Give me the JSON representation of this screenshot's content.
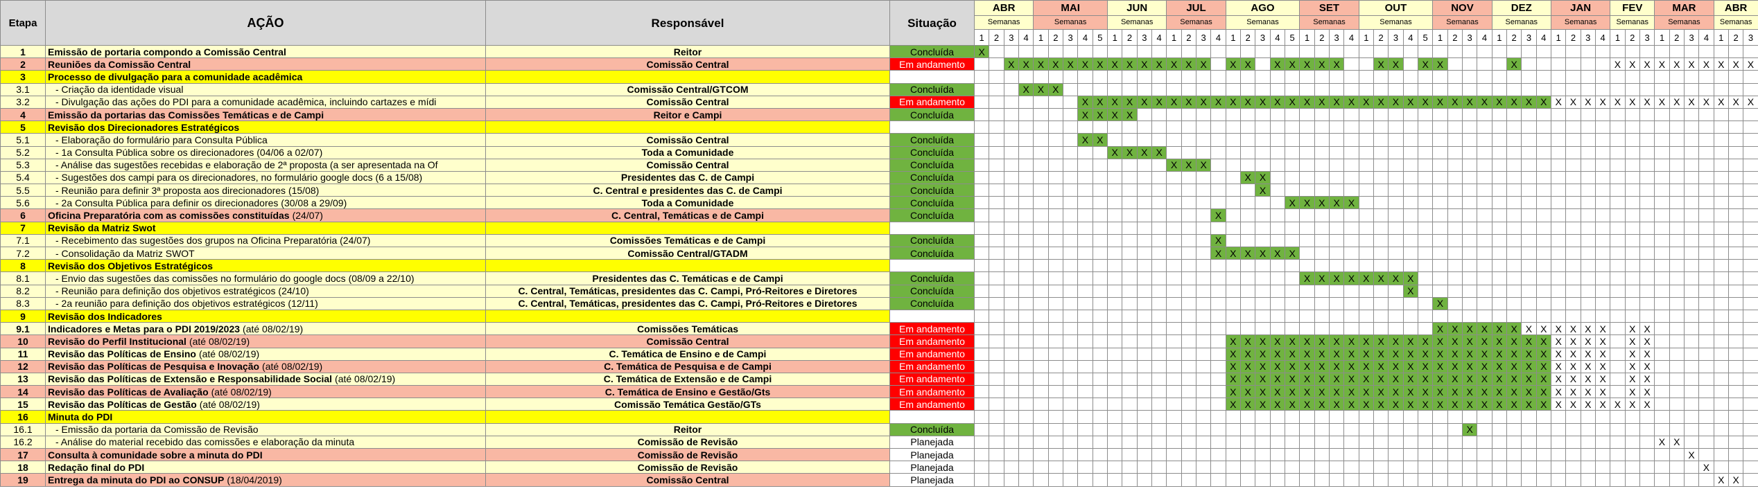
{
  "header": {
    "etapa": "Etapa",
    "acao": "AÇÃO",
    "responsavel": "Responsável",
    "situacao": "Situação",
    "weeks_label": "Semanas",
    "color": "#d9d9d9"
  },
  "status_colors": {
    "Concluída": {
      "bg": "#70b340",
      "fg": "#000000"
    },
    "Em andamento": {
      "bg": "#ff0000",
      "fg": "#ffffff"
    },
    "Planejada": {
      "bg": "#ffffff",
      "fg": "#000000"
    }
  },
  "done_color": "#70b340",
  "months": [
    {
      "name": "ABR",
      "weeks": [
        1,
        2,
        3,
        4
      ],
      "color": "#ffffcc"
    },
    {
      "name": "MAI",
      "weeks": [
        1,
        2,
        3,
        4,
        5
      ],
      "color": "#f9b8a4"
    },
    {
      "name": "JUN",
      "weeks": [
        1,
        2,
        3,
        4
      ],
      "color": "#ffffcc"
    },
    {
      "name": "JUL",
      "weeks": [
        1,
        2,
        3,
        4
      ],
      "color": "#f9b8a4"
    },
    {
      "name": "AGO",
      "weeks": [
        1,
        2,
        3,
        4,
        5
      ],
      "color": "#ffffcc"
    },
    {
      "name": "SET",
      "weeks": [
        1,
        2,
        3,
        4
      ],
      "color": "#f9b8a4"
    },
    {
      "name": "OUT",
      "weeks": [
        1,
        2,
        3,
        4,
        5
      ],
      "color": "#ffffcc"
    },
    {
      "name": "NOV",
      "weeks": [
        1,
        2,
        3,
        4
      ],
      "color": "#f9b8a4"
    },
    {
      "name": "DEZ",
      "weeks": [
        1,
        2,
        3,
        4
      ],
      "color": "#ffffcc"
    },
    {
      "name": "JAN",
      "weeks": [
        1,
        2,
        3,
        4
      ],
      "color": "#f9b8a4"
    },
    {
      "name": "FEV",
      "weeks": [
        1,
        2,
        3
      ],
      "color": "#ffffcc"
    },
    {
      "name": "MAR",
      "weeks": [
        1,
        2,
        3,
        4
      ],
      "color": "#f9b8a4"
    },
    {
      "name": "ABR",
      "weeks": [
        1,
        2,
        3
      ],
      "color": "#ffffcc"
    }
  ],
  "rows": [
    {
      "etapa": "1",
      "acao": "Emissão de portaria compondo a Comissão Central",
      "responsavel": "Reitor",
      "situacao": "Concluída",
      "color": "#ffffcc",
      "weeks": [
        "X"
      ],
      "done": [
        "g"
      ]
    },
    {
      "etapa": "2",
      "acao": "Reuniões da Comissão Central",
      "responsavel": "Comissão Central",
      "situacao": "Em andamento",
      "color": "#f9b8a4",
      "weeks": [
        "  XX",
        "XXXXX",
        "XXXX",
        "XXX ",
        "XX XX",
        "XXX",
        " XX X",
        "X",
        " X",
        "",
        "XXX",
        "XXXX",
        "XXX"
      ],
      "done": [
        "  gg",
        "ggggg",
        "gggg",
        "ggg ",
        "gg gg",
        "ggg",
        " gg g",
        "g",
        " g"
      ]
    },
    {
      "etapa": "3",
      "acao": "Processo de divulgação para a comunidade acadêmica",
      "color": "#ffff00"
    },
    {
      "etapa": "3.1",
      "acao": "- Criação da identidade visual",
      "sub": true,
      "responsavel": "Comissão Central/GTCOM",
      "situacao": "Concluída",
      "color": "#ffffcc",
      "weeks": [
        "   X",
        "XX"
      ],
      "done": [
        "   g",
        "gg"
      ]
    },
    {
      "etapa": "3.2",
      "acao": "- Divulgação das ações do PDI para a comunidade acadêmica, incluindo cartazes e mídi",
      "sub": true,
      "responsavel": "Comissão Central",
      "situacao": "Em andamento",
      "color": "#ffffcc",
      "weeks": [
        "",
        "   XX",
        "XXXX",
        "XXXX",
        "XXXXX",
        "XXXX",
        "XXXXX",
        "XXXX",
        "XXXX",
        "XXXX",
        "XXX",
        "XXXX",
        "XXX"
      ],
      "done": [
        "",
        "   gg",
        "gggg",
        "gggg",
        "ggggg",
        "gggg",
        "ggggg",
        "gggg",
        "gggg"
      ]
    },
    {
      "etapa": "4",
      "acao": "Emissão da portarias das Comissões Temáticas e de Campi",
      "responsavel": "Reitor e Campi",
      "situacao": "Concluída",
      "color": "#f9b8a4",
      "weeks": [
        "",
        "   XX",
        "XX"
      ],
      "done": [
        "",
        "   gg",
        "gg"
      ]
    },
    {
      "etapa": "5",
      "acao": "Revisão dos Direcionadores Estratégicos",
      "color": "#ffff00"
    },
    {
      "etapa": "5.1",
      "acao": "- Elaboração do formulário para Consulta Pública",
      "sub": true,
      "responsavel": "Comissão Central",
      "situacao": "Concluída",
      "color": "#ffffcc",
      "weeks": [
        "",
        "   XX"
      ],
      "done": [
        "",
        "   gg"
      ]
    },
    {
      "etapa": "5.2",
      "acao": "- 1a Consulta Pública sobre os direcionadores (04/06 a 02/07)",
      "sub": true,
      "responsavel": "Toda a Comunidade",
      "situacao": "Concluída",
      "color": "#ffffcc",
      "weeks": [
        "",
        "",
        "XXXX"
      ],
      "done": [
        "",
        "",
        "gggg"
      ]
    },
    {
      "etapa": "5.3",
      "acao": "- Análise das sugestões recebidas e elaboração de 2ª proposta (a ser apresentada na Of",
      "sub": true,
      "responsavel": "Comissão Central",
      "situacao": "Concluída",
      "color": "#ffffcc",
      "weeks": [
        "",
        "",
        "",
        "XXX"
      ],
      "done": [
        "",
        "",
        "",
        "ggg"
      ]
    },
    {
      "etapa": "5.4",
      "acao": "- Sugestões dos campi para os direcionadores, no formulário google docs (6 a 15/08)",
      "sub": true,
      "responsavel": "Presidentes das C. de Campi",
      "situacao": "Concluída",
      "color": "#ffffcc",
      "weeks": [
        "",
        "",
        "",
        "",
        " XX"
      ],
      "done": [
        "",
        "",
        "",
        "",
        " gg"
      ]
    },
    {
      "etapa": "5.5",
      "acao": "- Reunião para definir 3ª proposta aos direcionadores (15/08)",
      "sub": true,
      "responsavel": "C. Central e presidentes das C. de Campi",
      "situacao": "Concluída",
      "color": "#ffffcc",
      "weeks": [
        "",
        "",
        "",
        "",
        "  X"
      ],
      "done": [
        "",
        "",
        "",
        "",
        "  g"
      ]
    },
    {
      "etapa": "5.6",
      "acao": "- 2a Consulta Pública para definir os direcionadores (30/08 a 29/09)",
      "sub": true,
      "responsavel": "Toda a Comunidade",
      "situacao": "Concluída",
      "color": "#ffffcc",
      "weeks": [
        "",
        "",
        "",
        "",
        "    X",
        "XXXX"
      ],
      "done": [
        "",
        "",
        "",
        "",
        "    g",
        "gggg"
      ]
    },
    {
      "etapa": "6",
      "acao": "Oficina Preparatória com as comissões constituídas",
      "note": "(24/07)",
      "responsavel": "C. Central, Temáticas e de Campi",
      "situacao": "Concluída",
      "color": "#f9b8a4",
      "weeks": [
        "",
        "",
        "",
        "   X"
      ],
      "done": [
        "",
        "",
        "",
        "   g"
      ]
    },
    {
      "etapa": "7",
      "acao": "Revisão da Matriz Swot",
      "color": "#ffff00"
    },
    {
      "etapa": "7.1",
      "acao": "- Recebimento das sugestões dos grupos na Oficina Preparatória (24/07)",
      "sub": true,
      "responsavel": "Comissões Temáticas e de Campi",
      "situacao": "Concluída",
      "color": "#ffffcc",
      "weeks": [
        "",
        "",
        "",
        "   X"
      ],
      "done": [
        "",
        "",
        "",
        "   g"
      ]
    },
    {
      "etapa": "7.2",
      "acao": "- Consolidação da Matriz SWOT",
      "sub": true,
      "responsavel": "Comissão Central/GTADM",
      "situacao": "Concluída",
      "color": "#ffffcc",
      "weeks": [
        "",
        "",
        "",
        "   X",
        "XXXXX"
      ],
      "done": [
        "",
        "",
        "",
        "   g",
        "ggggg"
      ]
    },
    {
      "etapa": "8",
      "acao": "Revisão dos Objetivos Estratégicos",
      "color": "#ffff00"
    },
    {
      "etapa": "8.1",
      "acao": "- Envio das sugestões das comissões no formulário do google docs (08/09 a 22/10)",
      "sub": true,
      "responsavel": "Presidentes das C. Temáticas e de Campi",
      "situacao": "Concluída",
      "color": "#ffffcc",
      "weeks": [
        "",
        "",
        "",
        "",
        "",
        "XXXX",
        "XXXX"
      ],
      "done": [
        "",
        "",
        "",
        "",
        "",
        "gggg",
        "gggg"
      ]
    },
    {
      "etapa": "8.2",
      "acao": "- Reunião para definição dos objetivos estratégicos (24/10)",
      "sub": true,
      "responsavel": "C. Central, Temáticas, presidentes das C. Campi, Pró-Reitores e Diretores",
      "situacao": "Concluída",
      "color": "#ffffcc",
      "weeks": [
        "",
        "",
        "",
        "",
        "",
        "",
        "   X"
      ],
      "done": [
        "",
        "",
        "",
        "",
        "",
        "",
        "   g"
      ]
    },
    {
      "etapa": "8.3",
      "acao": "- 2a reunião para definição dos objetivos estratégicos (12/11)",
      "sub": true,
      "responsavel": "C. Central, Temáticas, presidentes das C. Campi, Pró-Reitores e Diretores",
      "situacao": "Concluída",
      "color": "#ffffcc",
      "weeks": [
        "",
        "",
        "",
        "",
        "",
        "",
        "",
        "X"
      ],
      "done": [
        "",
        "",
        "",
        "",
        "",
        "",
        "",
        "g"
      ]
    },
    {
      "etapa": "9",
      "acao": "Revisão dos Indicadores",
      "color": "#ffff00"
    },
    {
      "etapa": "9.1",
      "acao": "Indicadores e Metas para o PDI 2019/2023",
      "note": "(até 08/02/19)",
      "responsavel": "Comissões  Temáticas",
      "situacao": "Em andamento",
      "color": "#ffffcc",
      "weeks": [
        "",
        "",
        "",
        "",
        "",
        "",
        "",
        "XXXX",
        "XXXX",
        "XXXX",
        " XX"
      ],
      "done": [
        "",
        "",
        "",
        "",
        "",
        "",
        "",
        "gggg",
        "gg"
      ]
    },
    {
      "etapa": "10",
      "acao": "Revisão do Perfil Institucional",
      "note": "(até 08/02/19)",
      "responsavel": "Comissão Central",
      "situacao": "Em andamento",
      "color": "#f9b8a4",
      "weeks": [
        "",
        "",
        "",
        "",
        "XXXXX",
        "XXXX",
        "XXXXX",
        "XXXX",
        "XXXX",
        "XXXX",
        " XX"
      ],
      "done": [
        "",
        "",
        "",
        "",
        "ggggg",
        "gggg",
        "ggggg",
        "gggg",
        "gggg"
      ]
    },
    {
      "etapa": "11",
      "acao": "Revisão das Políticas de Ensino",
      "note": "(até 08/02/19)",
      "responsavel": "C. Temática de Ensino e de Campi",
      "situacao": "Em andamento",
      "color": "#ffffcc",
      "weeks": [
        "",
        "",
        "",
        "",
        "XXXXX",
        "XXXX",
        "XXXXX",
        "XXXX",
        "XXXX",
        "XXXX",
        " XX"
      ],
      "done": [
        "",
        "",
        "",
        "",
        "ggggg",
        "gggg",
        "ggggg",
        "gggg",
        "gggg"
      ]
    },
    {
      "etapa": "12",
      "acao": "Revisão das Políticas de Pesquisa e Inovação",
      "note": "(até 08/02/19)",
      "responsavel": "C. Temática de Pesquisa e de Campi",
      "situacao": "Em andamento",
      "color": "#f9b8a4",
      "weeks": [
        "",
        "",
        "",
        "",
        "XXXXX",
        "XXXX",
        "XXXXX",
        "XXXX",
        "XXXX",
        "XXXX",
        " XX"
      ],
      "done": [
        "",
        "",
        "",
        "",
        "ggggg",
        "gggg",
        "ggggg",
        "gggg",
        "gggg"
      ]
    },
    {
      "etapa": "13",
      "acao": "Revisão das Políticas de Extensão e Responsabilidade Social",
      "note": "(até 08/02/19)",
      "responsavel": "C. Temática de Extensão e de Campi",
      "situacao": "Em andamento",
      "color": "#ffffcc",
      "weeks": [
        "",
        "",
        "",
        "",
        "XXXXX",
        "XXXX",
        "XXXXX",
        "XXXX",
        "XXXX",
        "XXXX",
        " XX"
      ],
      "done": [
        "",
        "",
        "",
        "",
        "ggggg",
        "gggg",
        "ggggg",
        "gggg",
        "gggg"
      ]
    },
    {
      "etapa": "14",
      "acao": "Revisão das Políticas de Avaliação",
      "note": "(até 08/02/19)",
      "responsavel": "C. Temática de Ensino e Gestão/Gts",
      "situacao": "Em andamento",
      "color": "#f9b8a4",
      "weeks": [
        "",
        "",
        "",
        "",
        "XXXXX",
        "XXXX",
        "XXXXX",
        "XXXX",
        "XXXX",
        "XXXX",
        " XX"
      ],
      "done": [
        "",
        "",
        "",
        "",
        "ggggg",
        "gggg",
        "ggggg",
        "gggg",
        "gggg"
      ]
    },
    {
      "etapa": "15",
      "acao": "Revisão das Políticas de Gestão",
      "note": "(até 08/02/19)",
      "responsavel": "Comissão Temática Gestão/GTs",
      "situacao": "Em andamento",
      "color": "#ffffcc",
      "weeks": [
        "",
        "",
        "",
        "",
        "XXXXX",
        "XXXX",
        "XXXXX",
        "XXXX",
        "XXXX",
        "XXXX",
        "XXX"
      ],
      "done": [
        "",
        "",
        "",
        "",
        "ggggg",
        "gggg",
        "ggggg",
        "gggg",
        "gggg"
      ]
    },
    {
      "etapa": "16",
      "acao": "Minuta do PDI",
      "color": "#ffff00"
    },
    {
      "etapa": "16.1",
      "acao": "- Emissão da portaria da Comissão de Revisão",
      "sub": true,
      "responsavel": "Reitor",
      "situacao": "Concluída",
      "color": "#ffffcc",
      "weeks": [
        "",
        "",
        "",
        "",
        "",
        "",
        "",
        "  X"
      ],
      "done": [
        "",
        "",
        "",
        "",
        "",
        "",
        "",
        "  g"
      ]
    },
    {
      "etapa": "16.2",
      "acao": "- Análise do material recebido das comissões e elaboração da minuta",
      "sub": true,
      "responsavel": "Comissão de Revisão",
      "situacao": "Planejada",
      "color": "#ffffcc",
      "weeks": [
        "",
        "",
        "",
        "",
        "",
        "",
        "",
        "",
        "",
        "",
        "",
        "XX"
      ]
    },
    {
      "etapa": "17",
      "acao": "Consulta à comunidade sobre a minuta do PDI",
      "responsavel": "Comissão de Revisão",
      "situacao": "Planejada",
      "color": "#f9b8a4",
      "weeks": [
        "",
        "",
        "",
        "",
        "",
        "",
        "",
        "",
        "",
        "",
        "",
        "  X"
      ]
    },
    {
      "etapa": "18",
      "acao": "Redação final do PDI",
      "responsavel": "Comissão de Revisão",
      "situacao": "Planejada",
      "color": "#ffffcc",
      "weeks": [
        "",
        "",
        "",
        "",
        "",
        "",
        "",
        "",
        "",
        "",
        "",
        "   X"
      ]
    },
    {
      "etapa": "19",
      "acao": "Entrega da minuta do PDI ao CONSUP",
      "note": "(18/04/2019)",
      "responsavel": "Comissão Central",
      "situacao": "Planejada",
      "color": "#f9b8a4",
      "weeks": [
        "",
        "",
        "",
        "",
        "",
        "",
        "",
        "",
        "",
        "",
        "",
        "",
        "XX"
      ]
    }
  ]
}
